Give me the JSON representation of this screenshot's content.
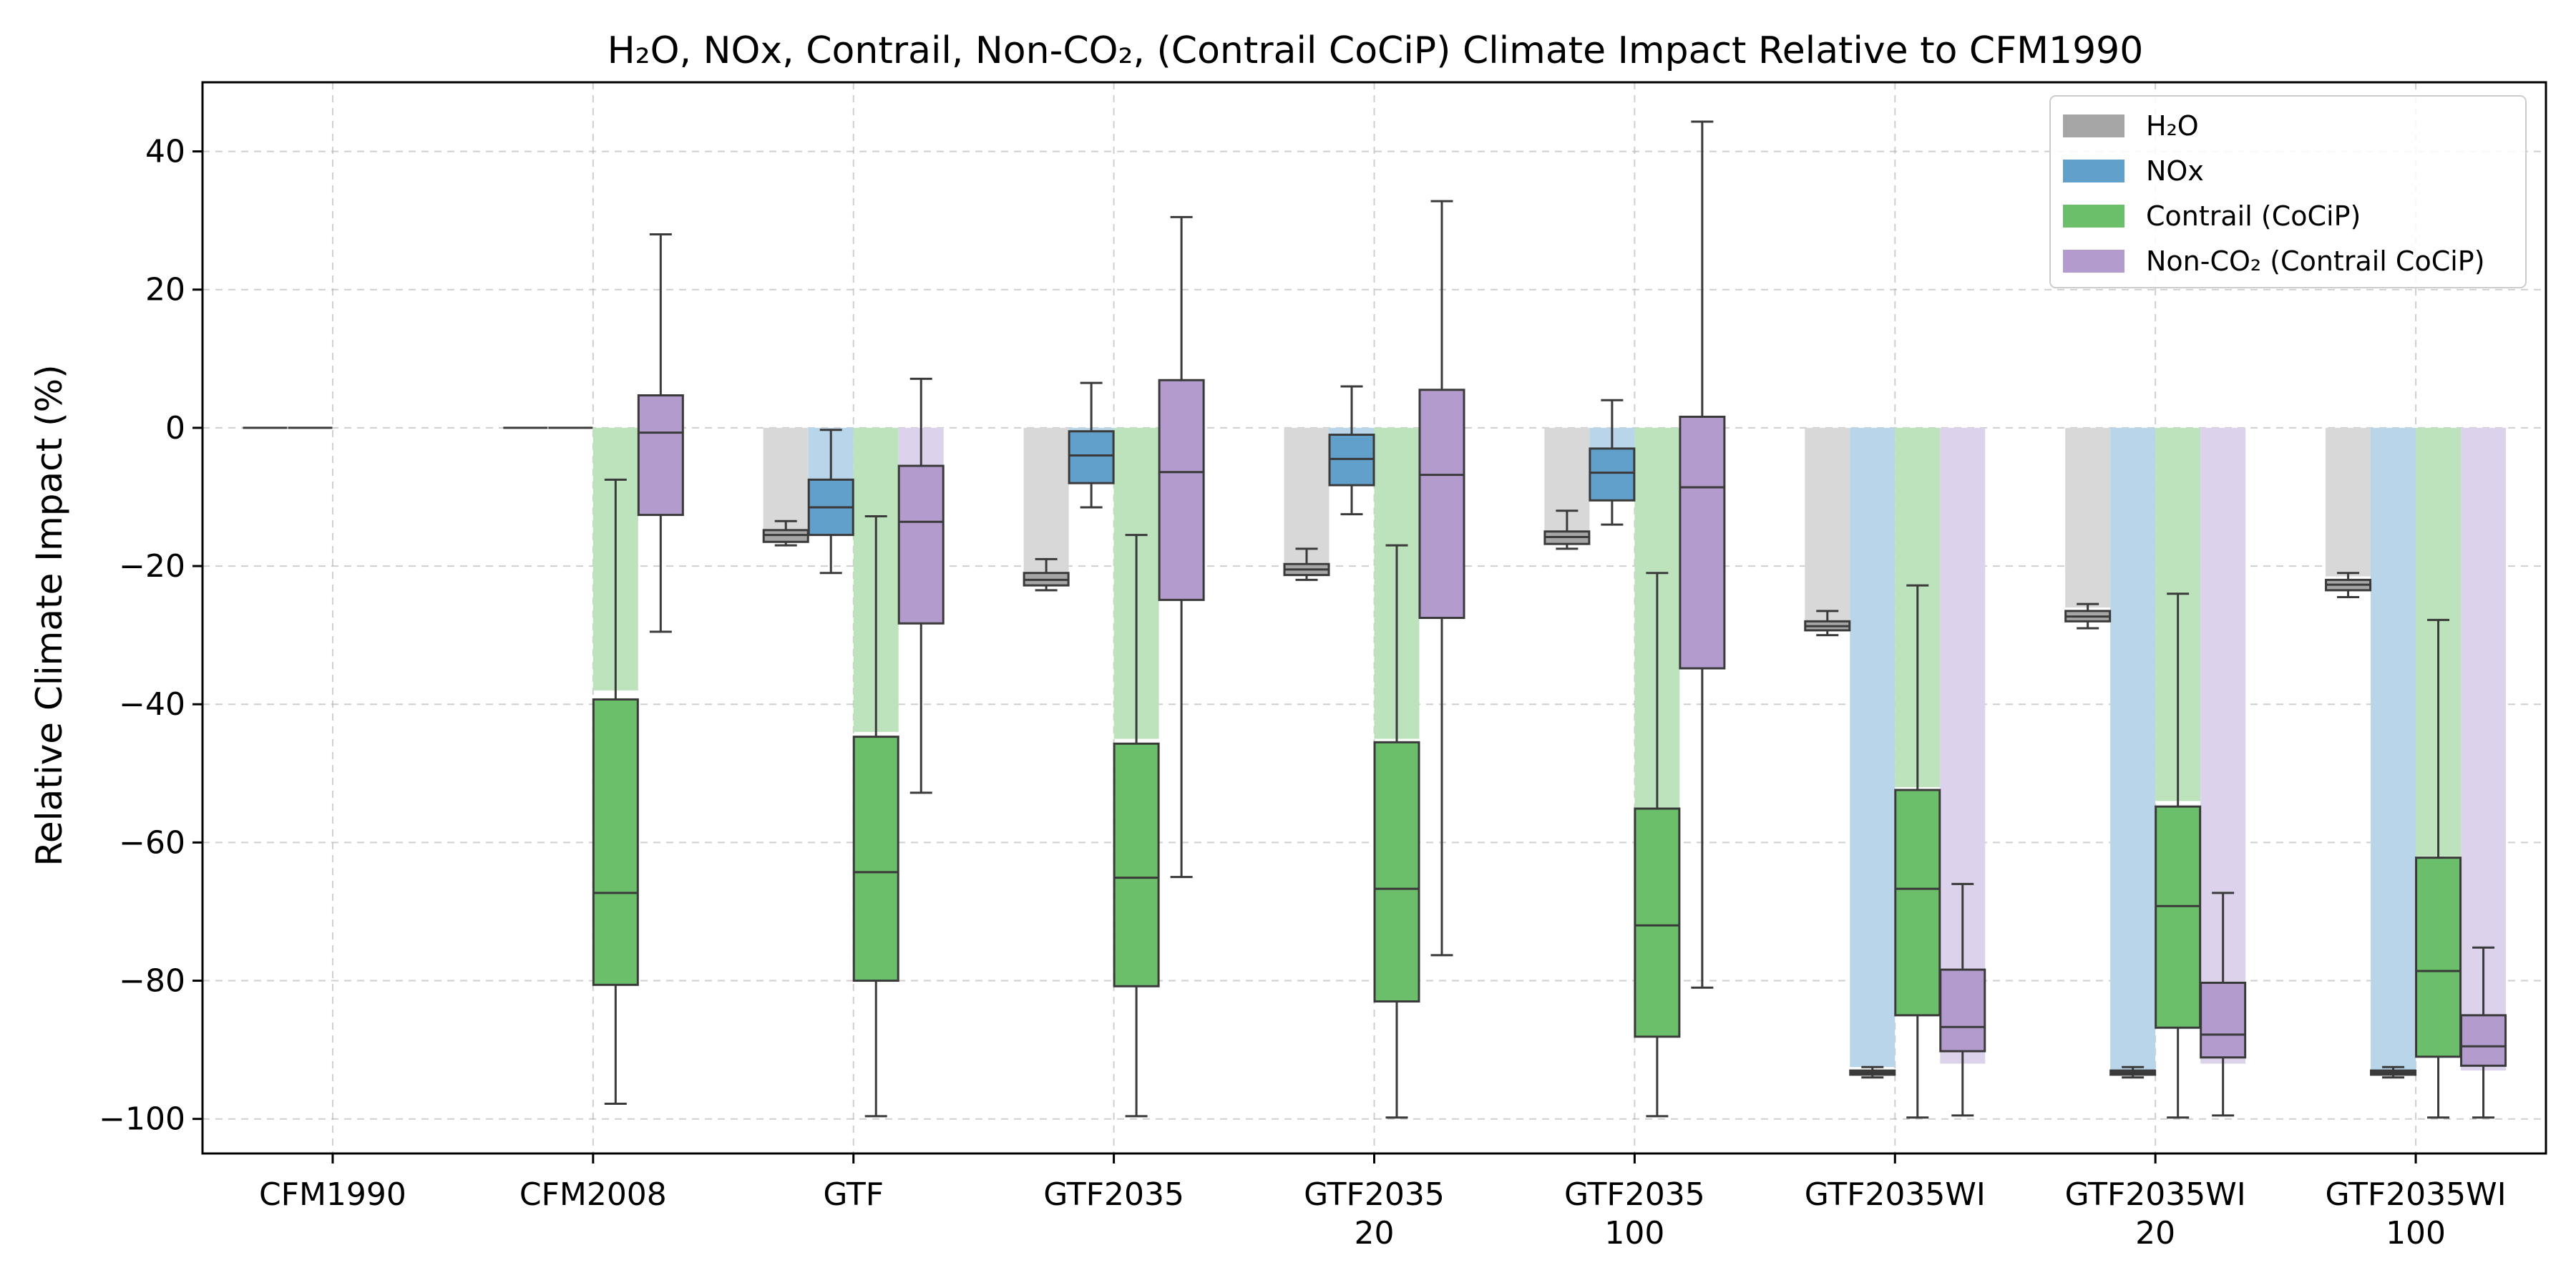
{
  "chart_data": {
    "type": "box",
    "title": "H₂O, NOx, Contrail, Non-CO₂, (Contrail CoCiP) Climate Impact Relative to CFM1990",
    "xlabel": "",
    "ylabel": "Relative Climate Impact (%)",
    "ylim": [
      -105,
      50
    ],
    "yticks": [
      -100,
      -80,
      -60,
      -40,
      -20,
      0,
      20,
      40
    ],
    "ytick_labels": [
      "−100",
      "−80",
      "−60",
      "−40",
      "−20",
      "0",
      "20",
      "40"
    ],
    "grid": true,
    "legend_position": "top-right",
    "categories": [
      [
        "CFM1990"
      ],
      [
        "CFM2008"
      ],
      [
        "GTF"
      ],
      [
        "GTF2035"
      ],
      [
        "GTF2035",
        "20"
      ],
      [
        "GTF2035",
        "100"
      ],
      [
        "GTF2035WI"
      ],
      [
        "GTF2035WI",
        "20"
      ],
      [
        "GTF2035WI",
        "100"
      ]
    ],
    "series": [
      {
        "name": "H₂O",
        "color_box": "#a6a6a6",
        "color_bar": "#d8d8d8",
        "mean": [
          0,
          0,
          -15,
          -21,
          -19.5,
          -15,
          -28,
          -26,
          -21.5
        ],
        "boxes": [
          {
            "min": 0,
            "q1": 0,
            "median": 0,
            "q3": 0,
            "max": 0
          },
          {
            "min": 0,
            "q1": 0,
            "median": 0,
            "q3": 0,
            "max": 0
          },
          {
            "min": -17,
            "q1": -16.5,
            "median": -15.5,
            "q3": -14.8,
            "max": -13.5
          },
          {
            "min": -23.5,
            "q1": -22.8,
            "median": -22,
            "q3": -21,
            "max": -19
          },
          {
            "min": -22,
            "q1": -21.3,
            "median": -20.5,
            "q3": -19.7,
            "max": -17.5
          },
          {
            "min": -17.5,
            "q1": -16.8,
            "median": -15.8,
            "q3": -15,
            "max": -12
          },
          {
            "min": -30,
            "q1": -29.3,
            "median": -28.7,
            "q3": -28,
            "max": -26.5
          },
          {
            "min": -29,
            "q1": -28,
            "median": -27.3,
            "q3": -26.5,
            "max": -25.5
          },
          {
            "min": -24.5,
            "q1": -23.5,
            "median": -22.7,
            "q3": -22,
            "max": -21
          }
        ]
      },
      {
        "name": "NOx",
        "color_box": "#62a0cc",
        "color_bar": "#b9d5e9",
        "mean": [
          0,
          0,
          -10,
          -4,
          -5,
          -6,
          -92.5,
          -93,
          -93
        ],
        "boxes": [
          {
            "min": 0,
            "q1": 0,
            "median": 0,
            "q3": 0,
            "max": 0
          },
          {
            "min": 0,
            "q1": 0,
            "median": 0,
            "q3": 0,
            "max": 0
          },
          {
            "min": -21,
            "q1": -15.5,
            "median": -11.5,
            "q3": -7.5,
            "max": -0.3
          },
          {
            "min": -11.5,
            "q1": -8,
            "median": -4,
            "q3": -0.5,
            "max": 6.5
          },
          {
            "min": -12.5,
            "q1": -8.3,
            "median": -4.5,
            "q3": -1,
            "max": 6
          },
          {
            "min": -14,
            "q1": -10.5,
            "median": -6.5,
            "q3": -3,
            "max": 4
          },
          {
            "min": -94,
            "q1": -93.6,
            "median": -93.3,
            "q3": -93,
            "max": -92.5
          },
          {
            "min": -94,
            "q1": -93.6,
            "median": -93.3,
            "q3": -93,
            "max": -92.5
          },
          {
            "min": -94,
            "q1": -93.6,
            "median": -93.3,
            "q3": -93,
            "max": -92.5
          }
        ]
      },
      {
        "name": "Contrail (CoCiP)",
        "color_box": "#6bbf6b",
        "color_bar": "#bde3bc",
        "mean": [
          0,
          -38,
          -44,
          -45,
          -45,
          -55,
          -52,
          -54,
          -62
        ],
        "boxes": [
          null,
          {
            "min": -97.8,
            "q1": -80.6,
            "median": -67.3,
            "q3": -39.3,
            "max": -7.5
          },
          {
            "min": -99.6,
            "q1": -80,
            "median": -64.3,
            "q3": -44.7,
            "max": -12.8
          },
          {
            "min": -99.6,
            "q1": -80.8,
            "median": -65.1,
            "q3": -45.7,
            "max": -15.5
          },
          {
            "min": -99.8,
            "q1": -83,
            "median": -66.7,
            "q3": -45.5,
            "max": -17
          },
          {
            "min": -99.6,
            "q1": -88.1,
            "median": -72,
            "q3": -55.1,
            "max": -21
          },
          {
            "min": -99.8,
            "q1": -85,
            "median": -66.7,
            "q3": -52.4,
            "max": -22.8
          },
          {
            "min": -99.8,
            "q1": -86.8,
            "median": -69.2,
            "q3": -54.8,
            "max": -24
          },
          {
            "min": -99.8,
            "q1": -91,
            "median": -78.6,
            "q3": -62.2,
            "max": -27.8
          }
        ]
      },
      {
        "name": "Non-CO₂ (Contrail CoCiP)",
        "color_box": "#b39bcd",
        "color_bar": "#ddd2ec",
        "mean": [
          0,
          0,
          -5.5,
          0,
          0,
          0,
          -92,
          -92,
          -93
        ],
        "boxes": [
          null,
          {
            "min": -29.5,
            "q1": -12.6,
            "median": -0.7,
            "q3": 4.7,
            "max": 28
          },
          {
            "min": -52.8,
            "q1": -28.3,
            "median": -13.6,
            "q3": -5.5,
            "max": 7.1
          },
          {
            "min": -65,
            "q1": -24.9,
            "median": -6.4,
            "q3": 6.9,
            "max": 30.5
          },
          {
            "min": -76.3,
            "q1": -27.5,
            "median": -6.8,
            "q3": 5.5,
            "max": 32.8
          },
          {
            "min": -81,
            "q1": -34.8,
            "median": -8.6,
            "q3": 1.6,
            "max": 44.3
          },
          {
            "min": -99.5,
            "q1": -90.2,
            "median": -86.7,
            "q3": -78.4,
            "max": -66
          },
          {
            "min": -99.5,
            "q1": -91.1,
            "median": -87.8,
            "q3": -80.3,
            "max": -67.3
          },
          {
            "min": -99.8,
            "q1": -92.3,
            "median": -89.5,
            "q3": -85,
            "max": -75.2
          }
        ]
      }
    ],
    "legend": [
      "H₂O",
      "NOx",
      "Contrail (CoCiP)",
      "Non-CO₂ (Contrail CoCiP)"
    ]
  }
}
